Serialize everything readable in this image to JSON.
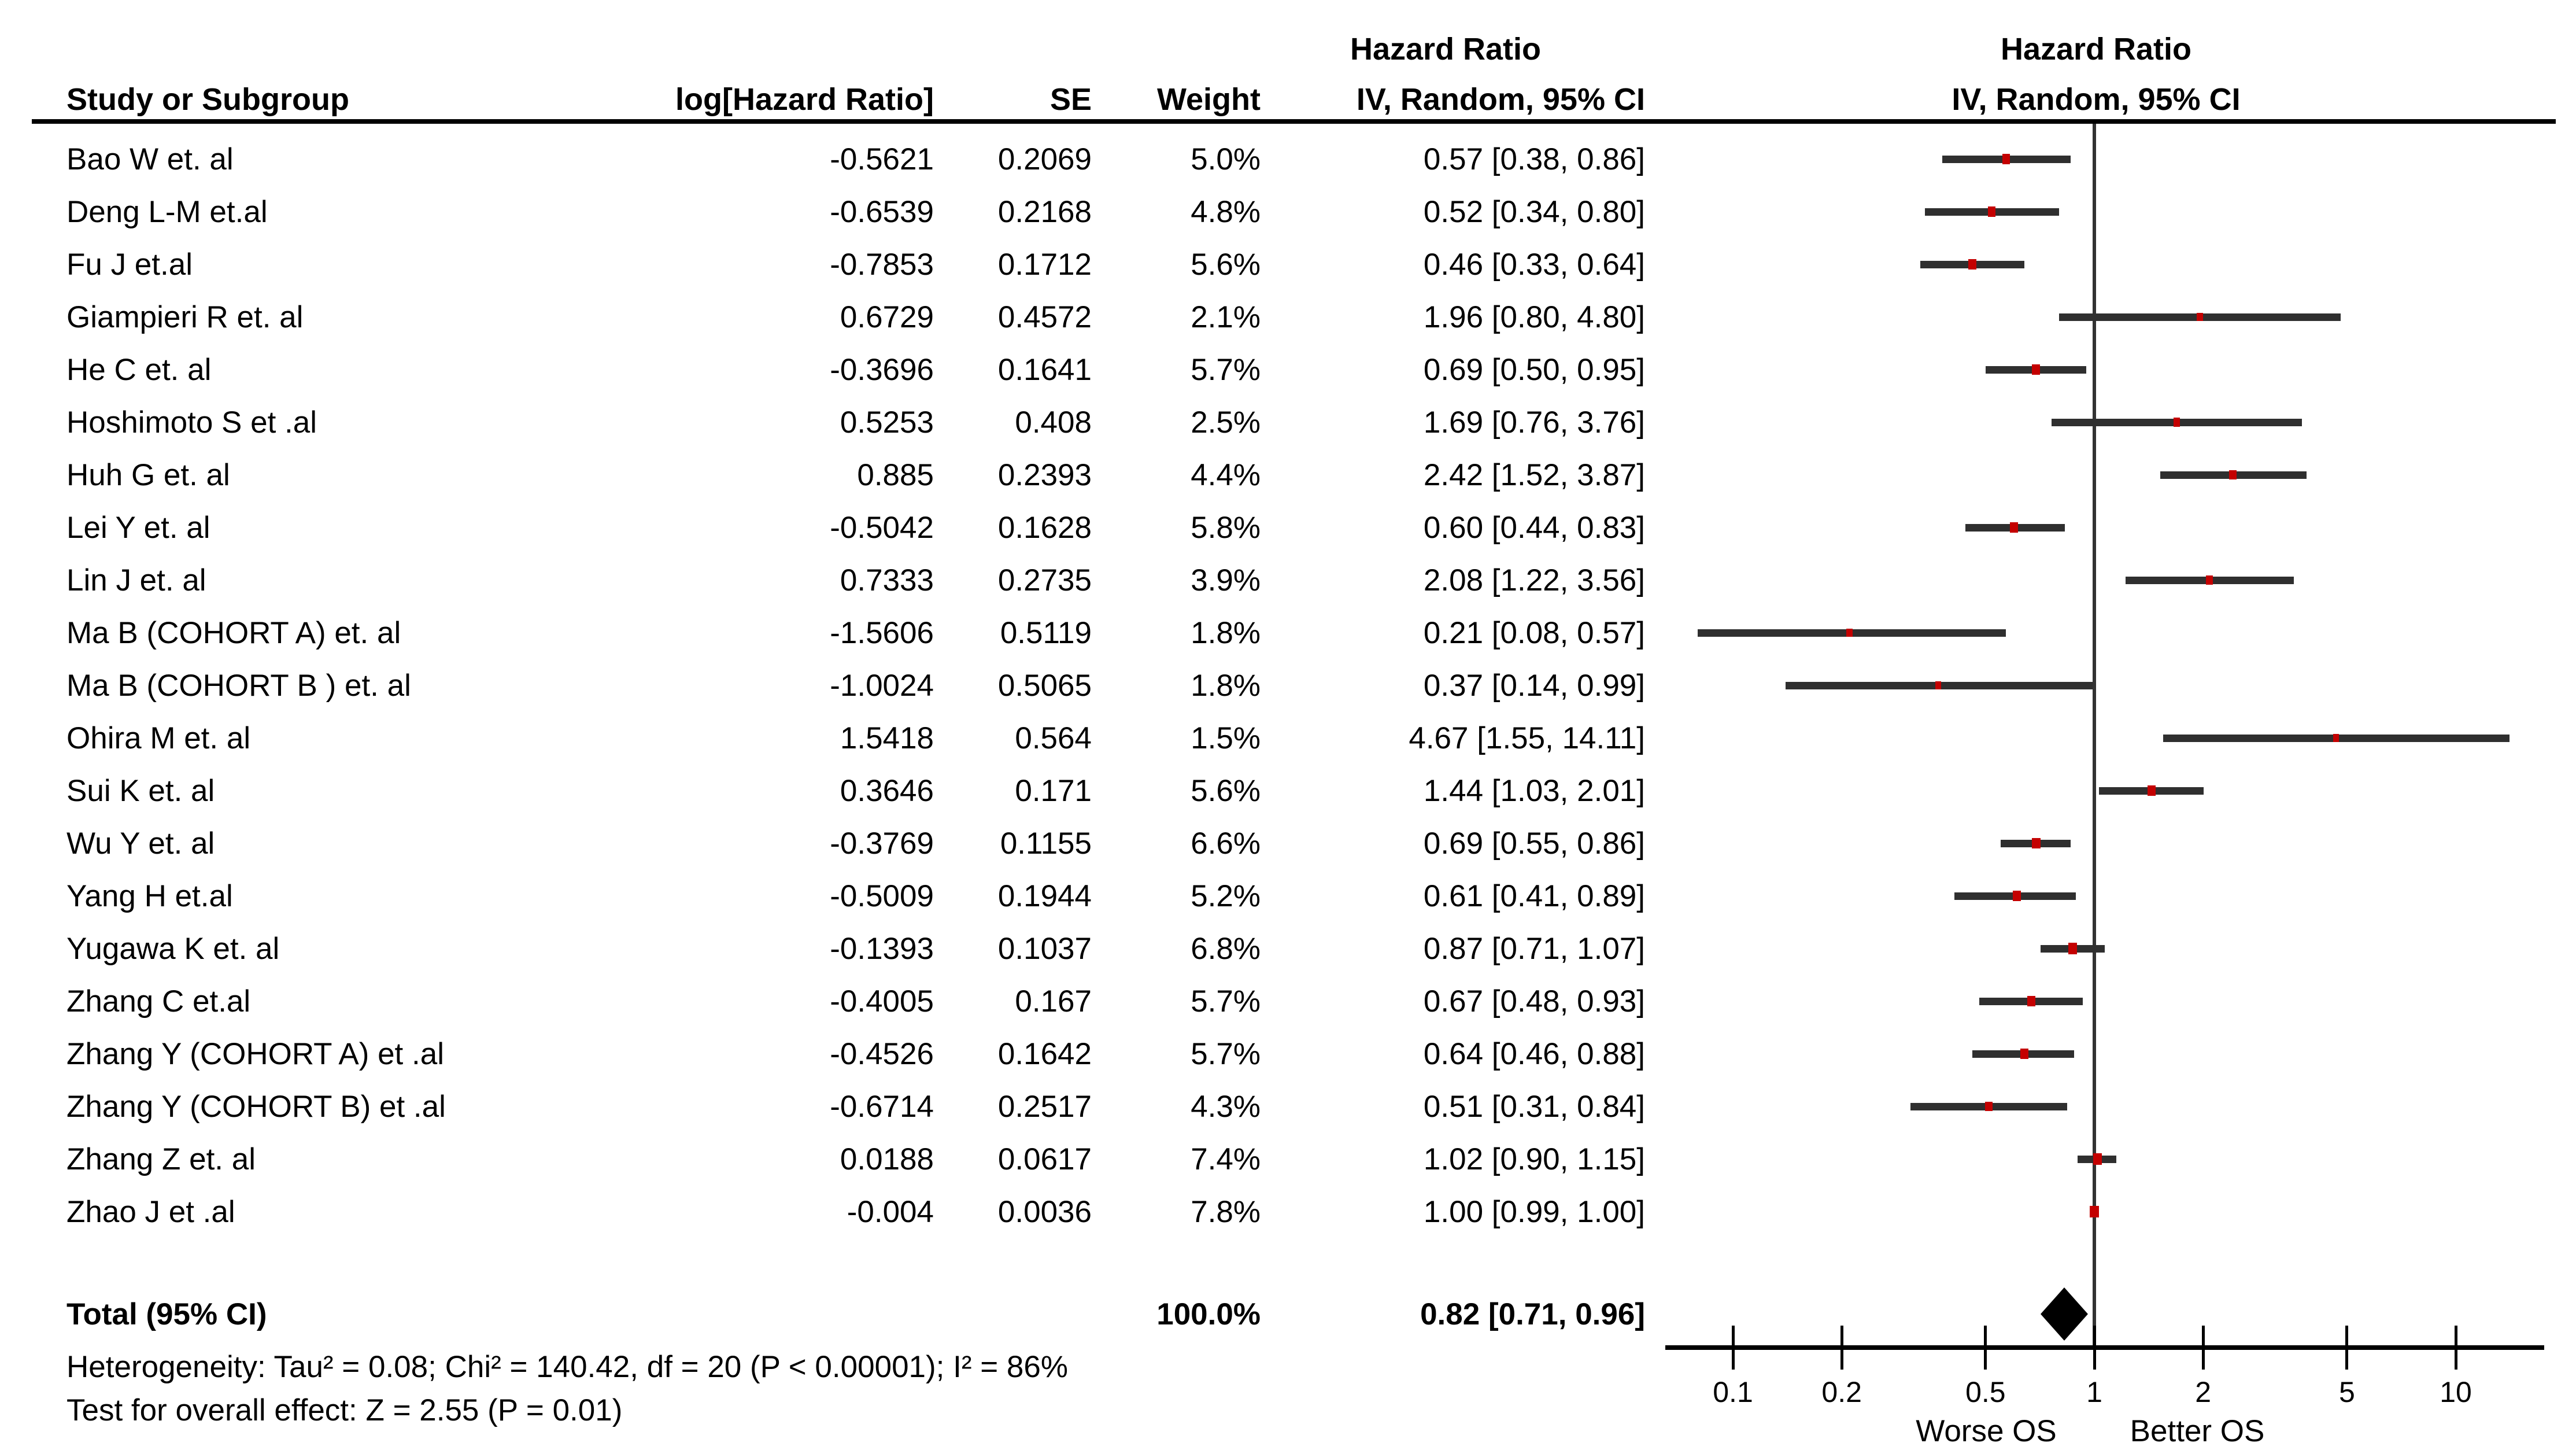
{
  "chart_data": {
    "type": "scatter",
    "subtype": "forest-plot",
    "x_scale": "log10",
    "effect_header": "Hazard Ratio",
    "model_header": "IV, Random, 95% CI",
    "columns": {
      "study": "Study or Subgroup",
      "log_hr": "log[Hazard Ratio]",
      "se": "SE",
      "weight": "Weight",
      "ci": "IV, Random, 95% CI"
    },
    "studies": [
      {
        "name": "Bao W et. al",
        "log_hr": "-0.5621",
        "se": "0.2069",
        "weight": "5.0%",
        "weight_pct": 5.0,
        "ci_text": "0.57 [0.38, 0.86]",
        "hr": 0.57,
        "lo": 0.38,
        "hi": 0.86
      },
      {
        "name": "Deng L-M et.al",
        "log_hr": "-0.6539",
        "se": "0.2168",
        "weight": "4.8%",
        "weight_pct": 4.8,
        "ci_text": "0.52 [0.34, 0.80]",
        "hr": 0.52,
        "lo": 0.34,
        "hi": 0.8
      },
      {
        "name": "Fu J et.al",
        "log_hr": "-0.7853",
        "se": "0.1712",
        "weight": "5.6%",
        "weight_pct": 5.6,
        "ci_text": "0.46 [0.33, 0.64]",
        "hr": 0.46,
        "lo": 0.33,
        "hi": 0.64
      },
      {
        "name": "Giampieri R et. al",
        "log_hr": "0.6729",
        "se": "0.4572",
        "weight": "2.1%",
        "weight_pct": 2.1,
        "ci_text": "1.96 [0.80, 4.80]",
        "hr": 1.96,
        "lo": 0.8,
        "hi": 4.8
      },
      {
        "name": "He C et. al",
        "log_hr": "-0.3696",
        "se": "0.1641",
        "weight": "5.7%",
        "weight_pct": 5.7,
        "ci_text": "0.69 [0.50, 0.95]",
        "hr": 0.69,
        "lo": 0.5,
        "hi": 0.95
      },
      {
        "name": "Hoshimoto S et .al",
        "log_hr": "0.5253",
        "se": "0.408",
        "weight": "2.5%",
        "weight_pct": 2.5,
        "ci_text": "1.69 [0.76, 3.76]",
        "hr": 1.69,
        "lo": 0.76,
        "hi": 3.76
      },
      {
        "name": "Huh G et. al",
        "log_hr": "0.885",
        "se": "0.2393",
        "weight": "4.4%",
        "weight_pct": 4.4,
        "ci_text": "2.42 [1.52, 3.87]",
        "hr": 2.42,
        "lo": 1.52,
        "hi": 3.87
      },
      {
        "name": "Lei Y et. al",
        "log_hr": "-0.5042",
        "se": "0.1628",
        "weight": "5.8%",
        "weight_pct": 5.8,
        "ci_text": "0.60 [0.44, 0.83]",
        "hr": 0.6,
        "lo": 0.44,
        "hi": 0.83
      },
      {
        "name": "Lin J et. al",
        "log_hr": "0.7333",
        "se": "0.2735",
        "weight": "3.9%",
        "weight_pct": 3.9,
        "ci_text": "2.08 [1.22, 3.56]",
        "hr": 2.08,
        "lo": 1.22,
        "hi": 3.56
      },
      {
        "name": "Ma B (COHORT A) et. al",
        "log_hr": "-1.5606",
        "se": "0.5119",
        "weight": "1.8%",
        "weight_pct": 1.8,
        "ci_text": "0.21 [0.08, 0.57]",
        "hr": 0.21,
        "lo": 0.08,
        "hi": 0.57
      },
      {
        "name": "Ma B (COHORT B ) et. al",
        "log_hr": "-1.0024",
        "se": "0.5065",
        "weight": "1.8%",
        "weight_pct": 1.8,
        "ci_text": "0.37 [0.14, 0.99]",
        "hr": 0.37,
        "lo": 0.14,
        "hi": 0.99
      },
      {
        "name": "Ohira M et. al",
        "log_hr": "1.5418",
        "se": "0.564",
        "weight": "1.5%",
        "weight_pct": 1.5,
        "ci_text": "4.67 [1.55, 14.11]",
        "hr": 4.67,
        "lo": 1.55,
        "hi": 14.11
      },
      {
        "name": "Sui K et. al",
        "log_hr": "0.3646",
        "se": "0.171",
        "weight": "5.6%",
        "weight_pct": 5.6,
        "ci_text": "1.44 [1.03, 2.01]",
        "hr": 1.44,
        "lo": 1.03,
        "hi": 2.01
      },
      {
        "name": "Wu Y et. al",
        "log_hr": "-0.3769",
        "se": "0.1155",
        "weight": "6.6%",
        "weight_pct": 6.6,
        "ci_text": "0.69 [0.55, 0.86]",
        "hr": 0.69,
        "lo": 0.55,
        "hi": 0.86
      },
      {
        "name": "Yang H et.al",
        "log_hr": "-0.5009",
        "se": "0.1944",
        "weight": "5.2%",
        "weight_pct": 5.2,
        "ci_text": "0.61 [0.41, 0.89]",
        "hr": 0.61,
        "lo": 0.41,
        "hi": 0.89
      },
      {
        "name": "Yugawa K et. al",
        "log_hr": "-0.1393",
        "se": "0.1037",
        "weight": "6.8%",
        "weight_pct": 6.8,
        "ci_text": "0.87 [0.71, 1.07]",
        "hr": 0.87,
        "lo": 0.71,
        "hi": 1.07
      },
      {
        "name": "Zhang C et.al",
        "log_hr": "-0.4005",
        "se": "0.167",
        "weight": "5.7%",
        "weight_pct": 5.7,
        "ci_text": "0.67 [0.48, 0.93]",
        "hr": 0.67,
        "lo": 0.48,
        "hi": 0.93
      },
      {
        "name": "Zhang Y (COHORT A) et .al",
        "log_hr": "-0.4526",
        "se": "0.1642",
        "weight": "5.7%",
        "weight_pct": 5.7,
        "ci_text": "0.64 [0.46, 0.88]",
        "hr": 0.64,
        "lo": 0.46,
        "hi": 0.88
      },
      {
        "name": "Zhang Y (COHORT B) et .al",
        "log_hr": "-0.6714",
        "se": "0.2517",
        "weight": "4.3%",
        "weight_pct": 4.3,
        "ci_text": "0.51 [0.31, 0.84]",
        "hr": 0.51,
        "lo": 0.31,
        "hi": 0.84
      },
      {
        "name": "Zhang Z et. al",
        "log_hr": "0.0188",
        "se": "0.0617",
        "weight": "7.4%",
        "weight_pct": 7.4,
        "ci_text": "1.02 [0.90, 1.15]",
        "hr": 1.02,
        "lo": 0.9,
        "hi": 1.15
      },
      {
        "name": "Zhao J et .al",
        "log_hr": "-0.004",
        "se": "0.0036",
        "weight": "7.8%",
        "weight_pct": 7.8,
        "ci_text": "1.00 [0.99, 1.00]",
        "hr": 1.0,
        "lo": 0.99,
        "hi": 1.0
      }
    ],
    "total": {
      "label": "Total (95% CI)",
      "weight": "100.0%",
      "ci_text": "0.82 [0.71, 0.96]",
      "hr": 0.82,
      "lo": 0.71,
      "hi": 0.96
    },
    "heterogeneity": "Heterogeneity: Tau² = 0.08; Chi² = 140.42, df = 20 (P < 0.00001); I² = 86%",
    "overall_effect": "Test for overall effect: Z = 2.55 (P = 0.01)",
    "x_ticks": [
      {
        "label": "0.1",
        "value": 0.1
      },
      {
        "label": "0.2",
        "value": 0.2
      },
      {
        "label": "0.5",
        "value": 0.5
      },
      {
        "label": "1",
        "value": 1
      },
      {
        "label": "2",
        "value": 2
      },
      {
        "label": "5",
        "value": 5
      },
      {
        "label": "10",
        "value": 10
      }
    ],
    "x_axis_labels": {
      "left": "Worse OS",
      "right": "Better OS"
    },
    "colors": {
      "marker": "#c40000",
      "ci_line": "#2f2f2f",
      "diamond": "#000000",
      "text": "#000000"
    }
  }
}
